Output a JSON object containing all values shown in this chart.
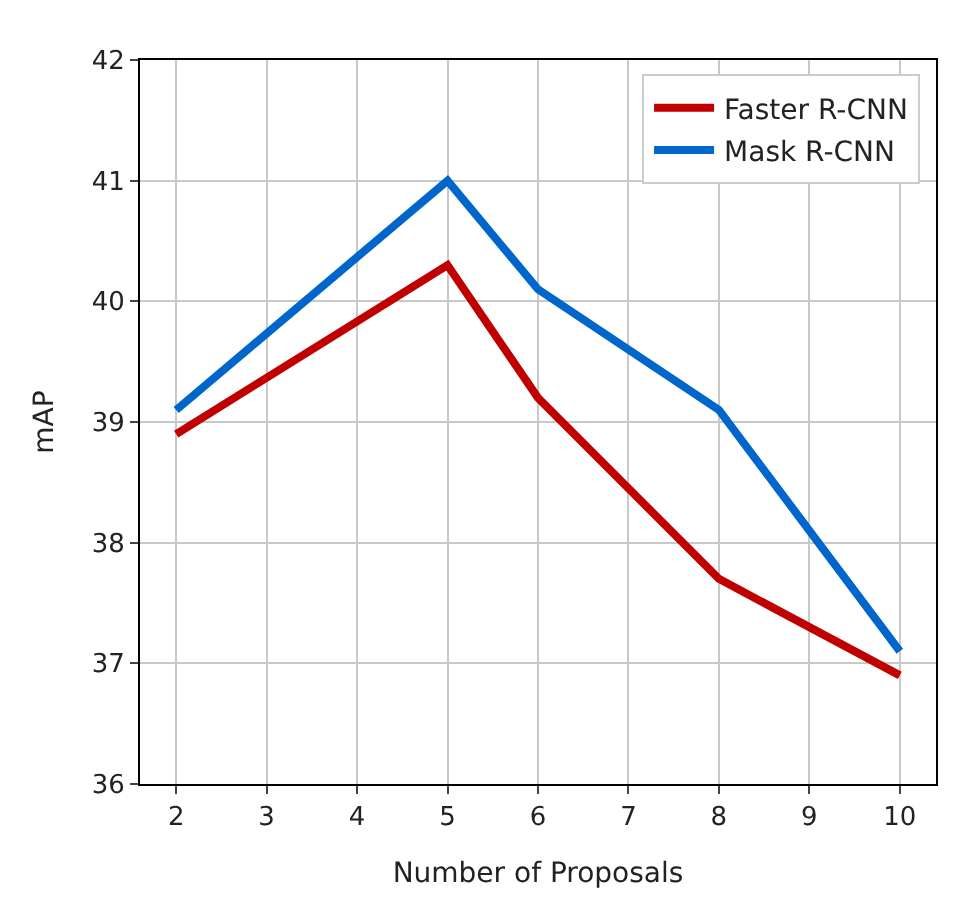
{
  "chart_data": {
    "type": "line",
    "xlabel": "Number of Proposals",
    "ylabel": "mAP",
    "x": [
      2,
      5,
      6,
      8,
      10
    ],
    "series": [
      {
        "name": "Faster R-CNN",
        "color": "#c00000",
        "values": [
          38.9,
          40.3,
          39.2,
          37.7,
          36.9
        ]
      },
      {
        "name": "Mask R-CNN",
        "color": "#0066cc",
        "values": [
          39.1,
          41.0,
          40.1,
          39.1,
          37.1
        ]
      }
    ],
    "xlim": [
      1.6,
      10.4
    ],
    "xticks": [
      2,
      3,
      4,
      5,
      6,
      7,
      8,
      9,
      10
    ],
    "ylim": [
      36,
      42
    ],
    "yticks": [
      36,
      37,
      38,
      39,
      40,
      41,
      42
    ],
    "grid": true,
    "legend": "top right",
    "marker": "none",
    "line_style": "solid"
  }
}
